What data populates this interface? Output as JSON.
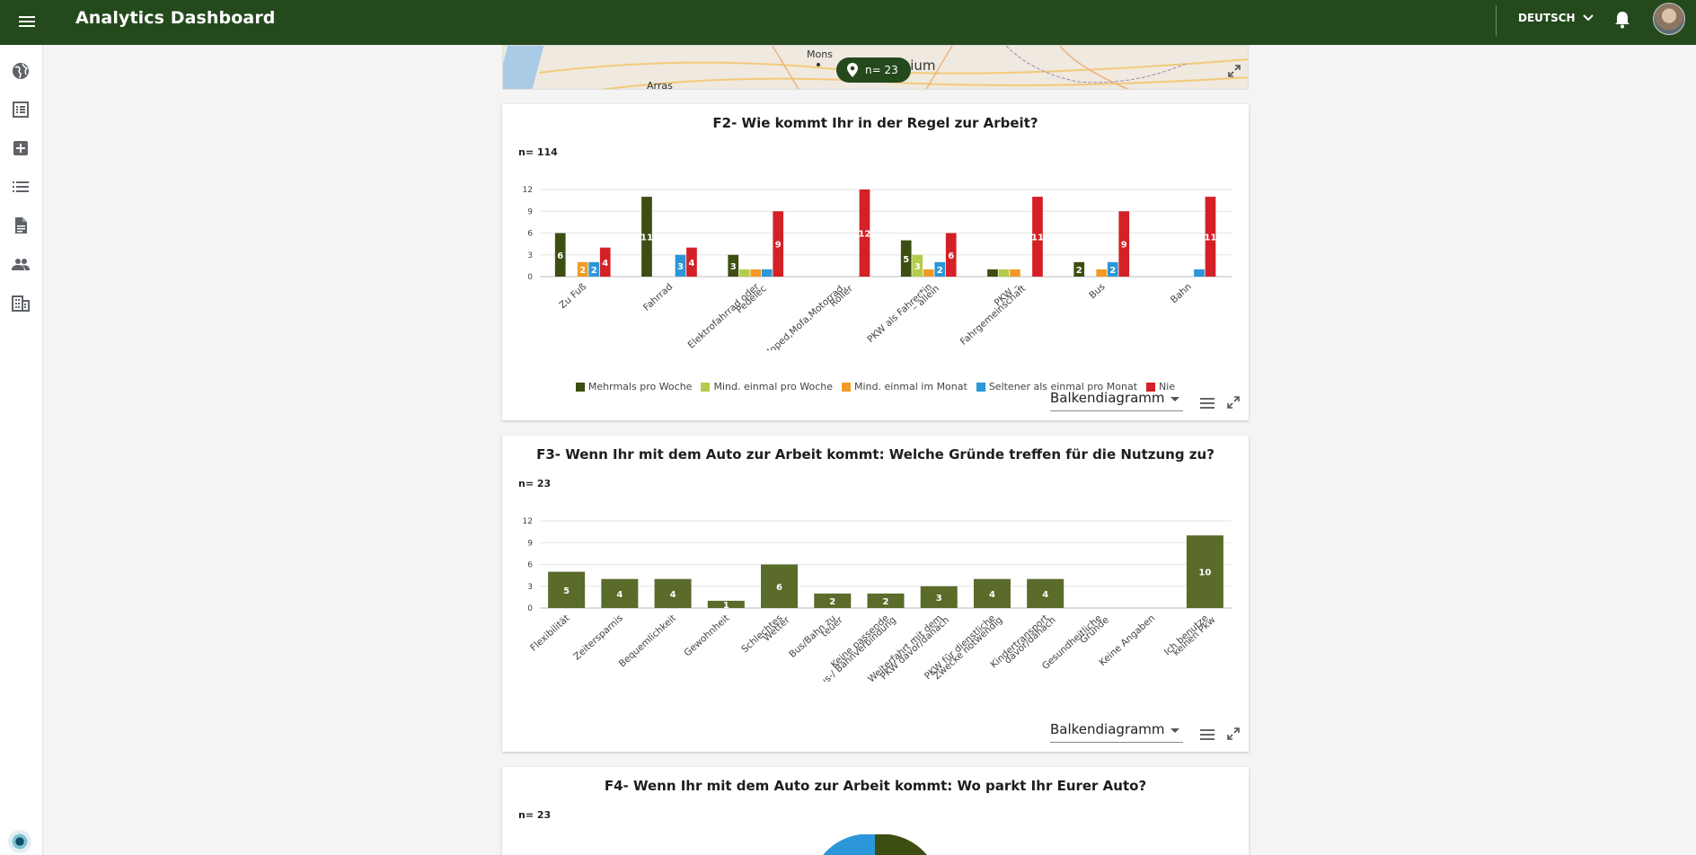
{
  "header": {
    "title": "Analytics Dashboard",
    "language": "DEUTSCH"
  },
  "sidebar": {
    "items": [
      {
        "icon": "globe-icon"
      },
      {
        "icon": "list-alt-icon"
      },
      {
        "icon": "add-box-icon"
      },
      {
        "icon": "list-icon"
      },
      {
        "icon": "document-icon"
      },
      {
        "icon": "people-icon"
      },
      {
        "icon": "building-icon"
      }
    ]
  },
  "map": {
    "places": [
      "Mons",
      "Arras",
      "Belgium"
    ],
    "badge": "n= 23"
  },
  "colors": {
    "brand": "#24491d",
    "bar_single": "#5a6b2a",
    "series": [
      "#3d4e12",
      "#b3cc4a",
      "#f29a27",
      "#2b97d8",
      "#d42027"
    ]
  },
  "card_f2": {
    "title": "F2- Wie kommt Ihr in der Regel zur Arbeit?",
    "n": "n= 114",
    "chart_type_label": "Balkendiagramm"
  },
  "card_f3": {
    "title": "F3- Wenn Ihr mit dem Auto zur Arbeit kommt: Welche Gründe treffen für die Nutzung zu?",
    "n": "n= 23",
    "chart_type_label": "Balkendiagramm"
  },
  "card_f4": {
    "title": "F4- Wenn Ihr mit dem Auto zur Arbeit kommt: Wo parkt Ihr Eurer Auto?",
    "n": "n= 23"
  },
  "chart_data": [
    {
      "type": "bar",
      "title": "F2- Wie kommt Ihr in der Regel zur Arbeit?",
      "categories": [
        "Zu Fuß",
        "Fahrrad",
        "Elektrofahrrad oder Pedelec",
        "Moped,Mofa,Motorrad, Roller",
        "PKW als Fahrer*in – allein",
        "PKW – Fahrgemeinschaft",
        "Bus",
        "Bahn"
      ],
      "series": [
        {
          "name": "Mehrmals pro Woche",
          "values": [
            6,
            11,
            3,
            0,
            5,
            1,
            2,
            0
          ]
        },
        {
          "name": "Mind. einmal pro Woche",
          "values": [
            0,
            0,
            1,
            0,
            3,
            1,
            0,
            0
          ]
        },
        {
          "name": "Mind. einmal im Monat",
          "values": [
            2,
            0,
            1,
            0,
            1,
            1,
            1,
            0
          ]
        },
        {
          "name": "Seltener als einmal pro Monat",
          "values": [
            2,
            3,
            1,
            0,
            2,
            0,
            2,
            1
          ]
        },
        {
          "name": "Nie",
          "values": [
            4,
            4,
            9,
            12,
            6,
            11,
            9,
            11
          ]
        }
      ],
      "yticks": [
        0,
        3,
        6,
        9,
        12
      ],
      "ylim": [
        0,
        12
      ],
      "grid": true,
      "legend": "bottom"
    },
    {
      "type": "bar",
      "title": "F3- Wenn Ihr mit dem Auto zur Arbeit kommt: Welche Gründe treffen für die Nutzung zu?",
      "categories": [
        "Flexibilität",
        "Zeitersparnis",
        "Bequemlichkeit",
        "Gewohnheit",
        "Schlechtes Wetter",
        "Bus/Bahn zu teuer",
        "Keine passende Bus-/ Bahnverbindung",
        "Weiterfahrt mit dem PKW davor/danach",
        "PKW für dienstliche Zwecke notwendig",
        "Kindertransport davor/danach",
        "Gesundheitliche Gründe",
        "Keine Angaben",
        "Ich benutze keinen Pkw"
      ],
      "values": [
        5,
        4,
        4,
        1,
        6,
        2,
        2,
        3,
        4,
        4,
        0,
        0,
        10
      ],
      "yticks": [
        0,
        3,
        6,
        9,
        12
      ],
      "ylim": [
        0,
        12
      ],
      "grid": true
    }
  ]
}
